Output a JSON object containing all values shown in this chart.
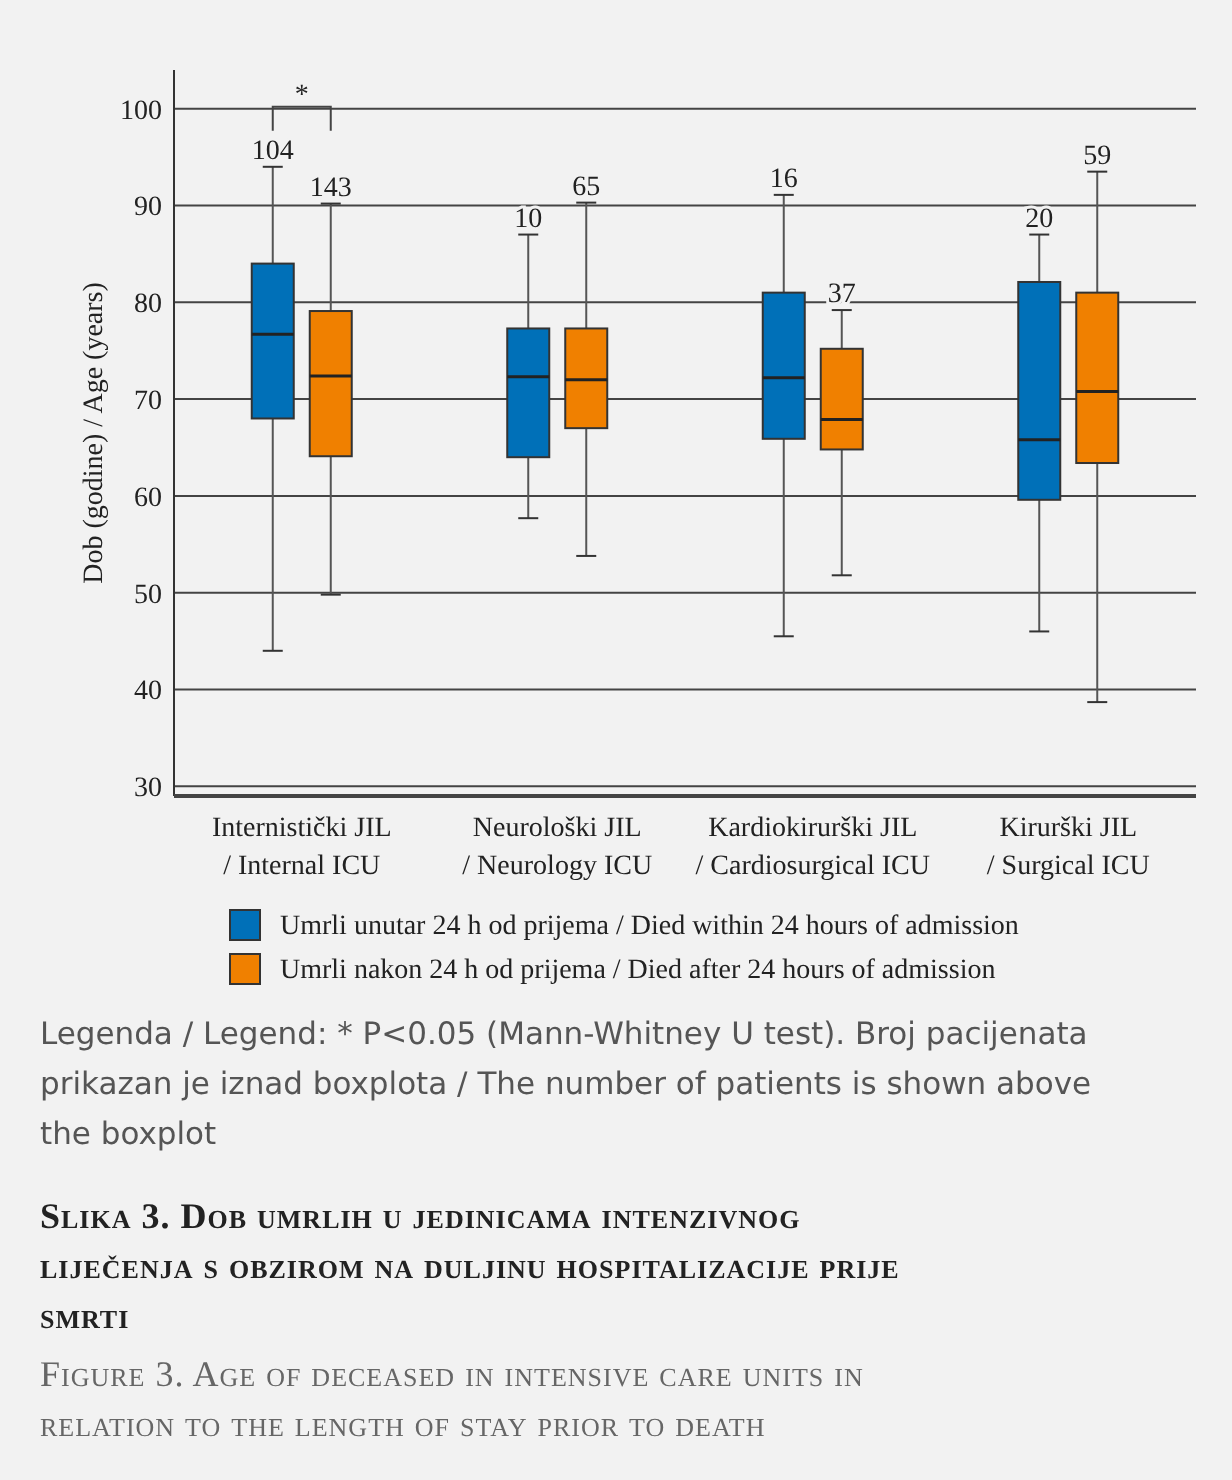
{
  "chart_data": {
    "type": "box",
    "title": "Slika 3. Dob umrlih u jedinicama intenzivnog liječenja s obzirom na duljinu hospitalizacije prije smrti",
    "subtitle": "Figure 3. Age of deceased in intensive care units in relation to the length of stay prior to death",
    "ylabel": "Dob (godine) / Age (years)",
    "categories": [
      "Internistički JIL / Internal ICU",
      "Neurološki JIL / Neurology ICU",
      "Kardiokirurški JIL / Cardiosurgical ICU",
      "Kirurški JIL / Surgical ICU"
    ],
    "series": [
      {
        "name": "Umrli unutar 24 h od prijema / Died within 24 hours of admission",
        "color": "#0070b8",
        "value_labels": [
          "104",
          "10",
          "16",
          "20"
        ],
        "boxes": [
          {
            "low": 44,
            "q1": 68,
            "median": 76.7,
            "q3": 84,
            "high": 94
          },
          {
            "low": 57.7,
            "q1": 64,
            "median": 72.3,
            "q3": 77.3,
            "high": 87
          },
          {
            "low": 45.5,
            "q1": 65.9,
            "median": 72.2,
            "q3": 81,
            "high": 91.1
          },
          {
            "low": 46,
            "q1": 59.6,
            "median": 65.8,
            "q3": 82.1,
            "high": 87
          }
        ]
      },
      {
        "name": "Umrli nakon 24 h od prijema / Died after 24 hours of admission",
        "color": "#f08000",
        "value_labels": [
          "143",
          "65",
          "37",
          "59"
        ],
        "boxes": [
          {
            "low": 49.8,
            "q1": 64.1,
            "median": 72.4,
            "q3": 79.1,
            "high": 90.2
          },
          {
            "low": 53.8,
            "q1": 67,
            "median": 72,
            "q3": 77.3,
            "high": 90.3
          },
          {
            "low": 51.8,
            "q1": 64.8,
            "median": 67.9,
            "q3": 75.2,
            "high": 79.2
          },
          {
            "low": 38.7,
            "q1": 63.4,
            "median": 70.8,
            "q3": 81,
            "high": 93.5
          }
        ]
      }
    ],
    "ylim": [
      29,
      104
    ],
    "yticks": [
      30,
      40,
      50,
      60,
      70,
      80,
      90,
      100
    ],
    "grid": "y",
    "legend": "bottom",
    "annotations": [
      "*",
      "Legenda / Legend: * P<0.05 (Mann-Whitney U test). Broj pacijenata prikazan je iznad boxplota / The number of patients is shown above the boxplot"
    ]
  }
}
